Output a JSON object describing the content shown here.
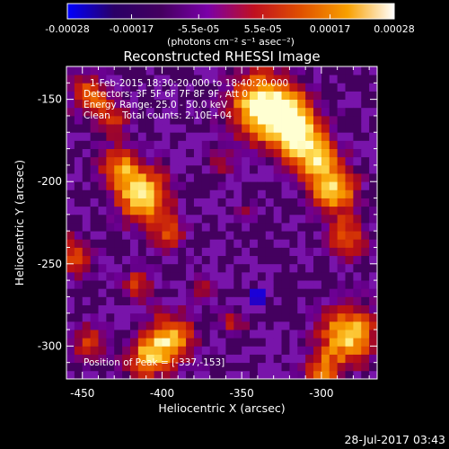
{
  "chart_data": {
    "type": "heatmap",
    "title": "Reconstructed RHESSI Image",
    "xlabel": "Heliocentric X (arcsec)",
    "ylabel": "Heliocentric Y (arcsec)",
    "xlim": [
      -460,
      -265
    ],
    "ylim": [
      -320,
      -130
    ],
    "x_ticks": [
      {
        "value": -450,
        "label": "-450"
      },
      {
        "value": -400,
        "label": "-400"
      },
      {
        "value": -350,
        "label": "-350"
      },
      {
        "value": -300,
        "label": "-300"
      }
    ],
    "y_ticks": [
      {
        "value": -150,
        "label": "-150"
      },
      {
        "value": -200,
        "label": "-200"
      },
      {
        "value": -250,
        "label": "-250"
      },
      {
        "value": -300,
        "label": "-300"
      }
    ],
    "colorbar": {
      "min": -0.00028,
      "max": 0.00028,
      "ticks": [
        {
          "value": -0.00028,
          "label": "-0.00028"
        },
        {
          "value": -0.00017,
          "label": "-0.00017"
        },
        {
          "value": -5.5e-05,
          "label": "-5.5e-05"
        },
        {
          "value": 5.5e-05,
          "label": "5.5e-05"
        },
        {
          "value": 0.00017,
          "label": "0.00017"
        },
        {
          "value": 0.00028,
          "label": "0.00028"
        }
      ],
      "unit_label": "(photons cm⁻² s⁻¹ asec⁻²)",
      "colormap": [
        "#0000ff",
        "#2a0066",
        "#44005f",
        "#7a00a8",
        "#c01020",
        "#e05000",
        "#f8a000",
        "#ffffff"
      ]
    },
    "annotations": {
      "time_range": "1-Feb-2015 18:30:20.000 to 18:40:20.000",
      "detectors": "Detectors: 3F 5F 6F 7F 8F 9F, Att 0",
      "energy_range": "Energy Range: 25.0 - 50.0 keV",
      "method_counts": "Clean    Total counts: 2.10E+04",
      "peak": "Position of Peak = [-337,-153]"
    },
    "peak": {
      "x": -337,
      "y": -153
    },
    "blobs": [
      {
        "x": -337,
        "y": -153,
        "r": 15,
        "a": 1.0
      },
      {
        "x": -318,
        "y": -165,
        "r": 12,
        "a": 0.85
      },
      {
        "x": -305,
        "y": -185,
        "r": 11,
        "a": 0.75
      },
      {
        "x": -292,
        "y": -205,
        "r": 11,
        "a": 0.8
      },
      {
        "x": -285,
        "y": -235,
        "r": 9,
        "a": 0.65
      },
      {
        "x": -412,
        "y": -208,
        "r": 12,
        "a": 0.95
      },
      {
        "x": -428,
        "y": -190,
        "r": 9,
        "a": 0.6
      },
      {
        "x": -395,
        "y": -232,
        "r": 8,
        "a": 0.5
      },
      {
        "x": -445,
        "y": -148,
        "r": 9,
        "a": 0.65
      },
      {
        "x": -430,
        "y": -162,
        "r": 7,
        "a": 0.5
      },
      {
        "x": -455,
        "y": -245,
        "r": 9,
        "a": 0.6
      },
      {
        "x": -415,
        "y": -262,
        "r": 7,
        "a": 0.5
      },
      {
        "x": -395,
        "y": -295,
        "r": 11,
        "a": 0.8
      },
      {
        "x": -410,
        "y": -308,
        "r": 9,
        "a": 0.7
      },
      {
        "x": -445,
        "y": -298,
        "r": 8,
        "a": 0.55
      },
      {
        "x": -283,
        "y": -293,
        "r": 13,
        "a": 0.9
      },
      {
        "x": -300,
        "y": -315,
        "r": 8,
        "a": 0.6
      },
      {
        "x": -355,
        "y": -285,
        "r": 7,
        "a": 0.4
      },
      {
        "x": -362,
        "y": -190,
        "r": 6,
        "a": 0.4
      },
      {
        "x": -348,
        "y": -218,
        "r": 5,
        "a": 0.3
      },
      {
        "x": -375,
        "y": -265,
        "r": 6,
        "a": 0.35
      }
    ],
    "dip": {
      "x": -340,
      "y": -268,
      "r": 6,
      "a": 0.9
    }
  },
  "timestamp": "28-Jul-2017 03:43"
}
